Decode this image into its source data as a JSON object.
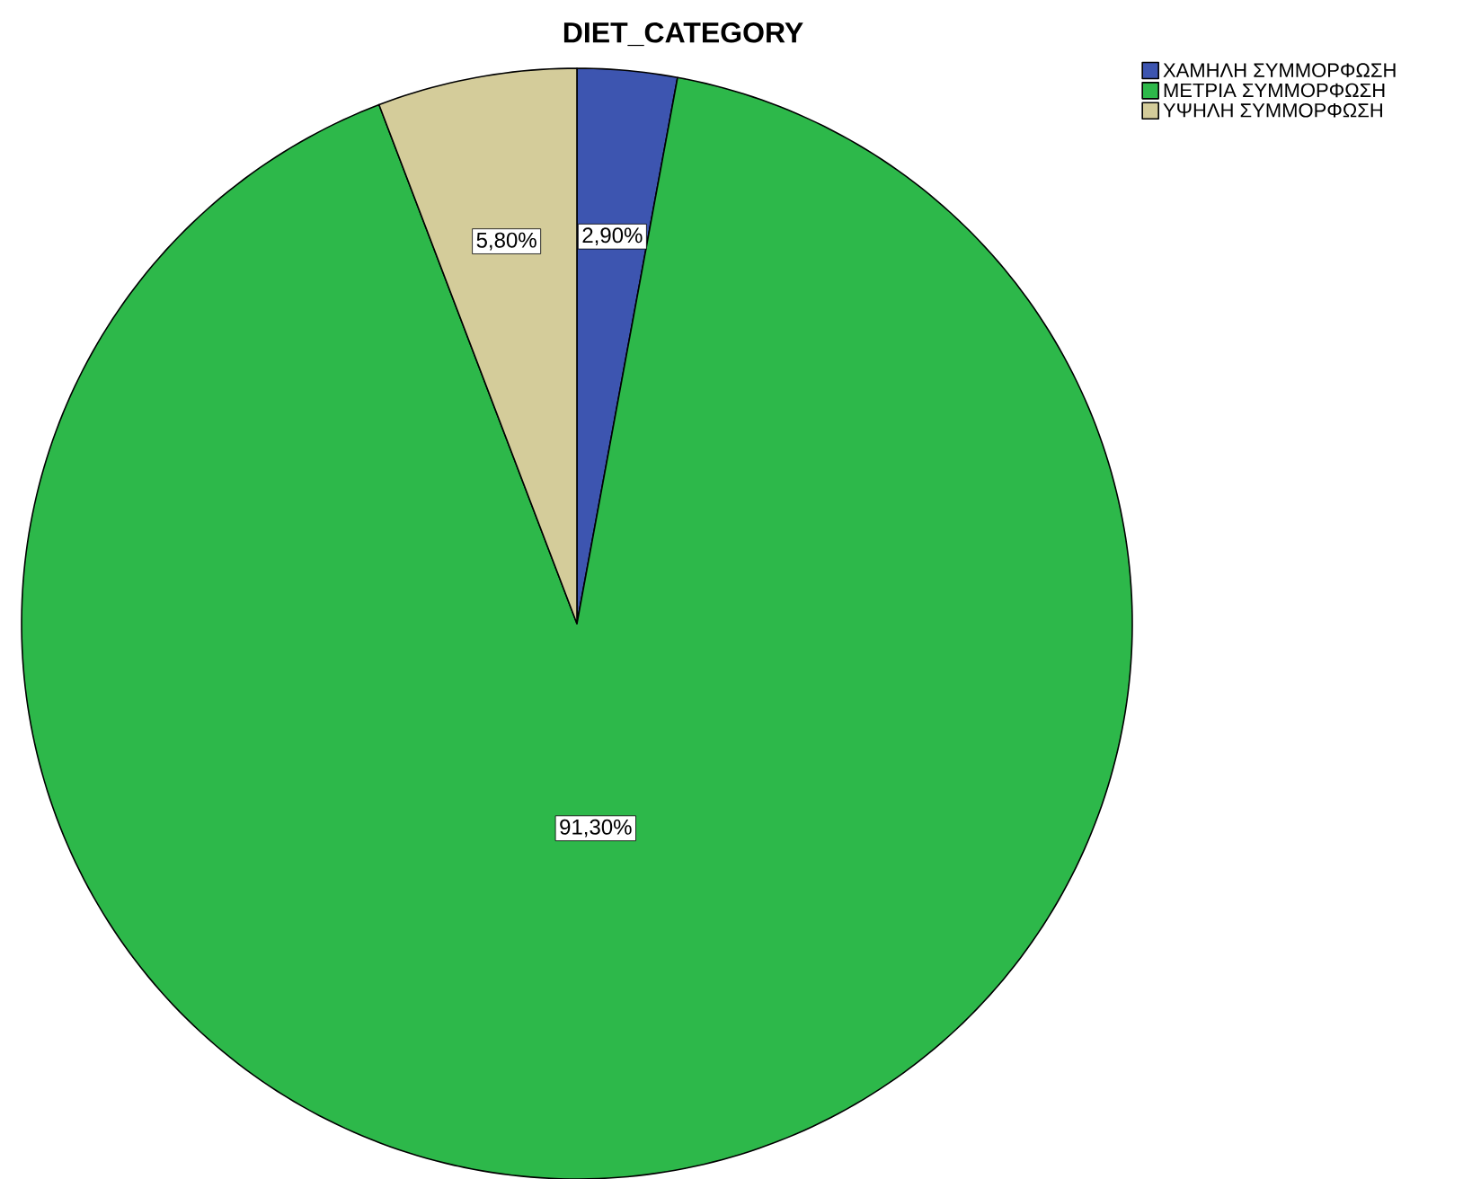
{
  "chart_data": {
    "type": "pie",
    "title": "DIET_CATEGORY",
    "categories": [
      "ΧΑΜΗΛΗ ΣΥΜΜΟΡΦΩΣΗ",
      "ΜΕΤΡΙΑ ΣΥΜΜΟΡΦΩΣΗ",
      "ΥΨΗΛΗ ΣΥΜΜΟΡΦΩΣΗ"
    ],
    "values": [
      2.9,
      91.3,
      5.8
    ],
    "value_labels": [
      "2,90%",
      "91,30%",
      "5,80%"
    ],
    "colors": [
      "#3d55b0",
      "#2db84a",
      "#d4cc9a"
    ],
    "legend": "top right"
  }
}
